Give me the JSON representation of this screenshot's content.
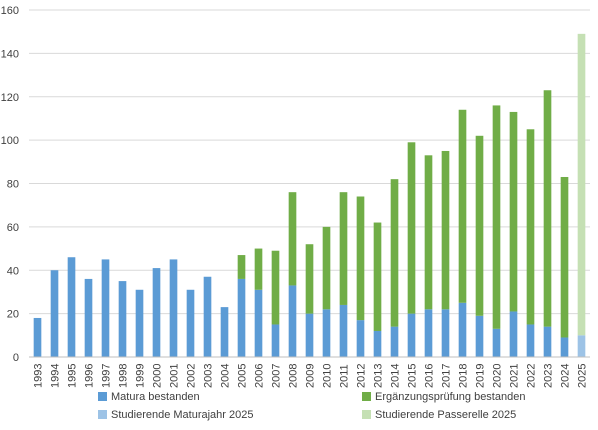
{
  "chart_data": {
    "type": "bar",
    "stacked": true,
    "categories": [
      "1993",
      "1994",
      "1995",
      "1996",
      "1997",
      "1998",
      "1999",
      "2000",
      "2001",
      "2002",
      "2003",
      "2004",
      "2005",
      "2006",
      "2007",
      "2008",
      "2009",
      "2010",
      "2011",
      "2012",
      "2013",
      "2014",
      "2015",
      "2016",
      "2017",
      "2018",
      "2019",
      "2020",
      "2021",
      "2022",
      "2023",
      "2024",
      "2025"
    ],
    "series": [
      {
        "name": "Matura bestanden",
        "color": "#5b9bd5",
        "values": [
          18,
          40,
          46,
          36,
          45,
          35,
          31,
          41,
          45,
          31,
          37,
          23,
          36,
          31,
          15,
          33,
          20,
          22,
          24,
          17,
          12,
          14,
          20,
          22,
          22,
          25,
          19,
          13,
          21,
          15,
          14,
          9,
          0
        ]
      },
      {
        "name": "Ergänzungsprüfung bestanden",
        "color": "#70ad47",
        "values": [
          0,
          0,
          0,
          0,
          0,
          0,
          0,
          0,
          0,
          0,
          0,
          0,
          11,
          19,
          34,
          43,
          32,
          38,
          52,
          57,
          50,
          68,
          79,
          71,
          73,
          89,
          83,
          103,
          92,
          90,
          109,
          74,
          0
        ]
      },
      {
        "name": "Studierende Maturajahr 2025",
        "color": "#9dc3e6",
        "values": [
          0,
          0,
          0,
          0,
          0,
          0,
          0,
          0,
          0,
          0,
          0,
          0,
          0,
          0,
          0,
          0,
          0,
          0,
          0,
          0,
          0,
          0,
          0,
          0,
          0,
          0,
          0,
          0,
          0,
          0,
          0,
          0,
          10
        ]
      },
      {
        "name": "Studierende Passerelle 2025",
        "color": "#c5e0b4",
        "values": [
          0,
          0,
          0,
          0,
          0,
          0,
          0,
          0,
          0,
          0,
          0,
          0,
          0,
          0,
          0,
          0,
          0,
          0,
          0,
          0,
          0,
          0,
          0,
          0,
          0,
          0,
          0,
          0,
          0,
          0,
          0,
          0,
          139
        ]
      }
    ],
    "ylim": [
      0,
      160
    ],
    "yticks": [
      "0",
      "20",
      "40",
      "60",
      "80",
      "100",
      "120",
      "140",
      "160"
    ],
    "grid": true,
    "legend_position": "bottom",
    "title": "",
    "xlabel": "",
    "ylabel": ""
  }
}
